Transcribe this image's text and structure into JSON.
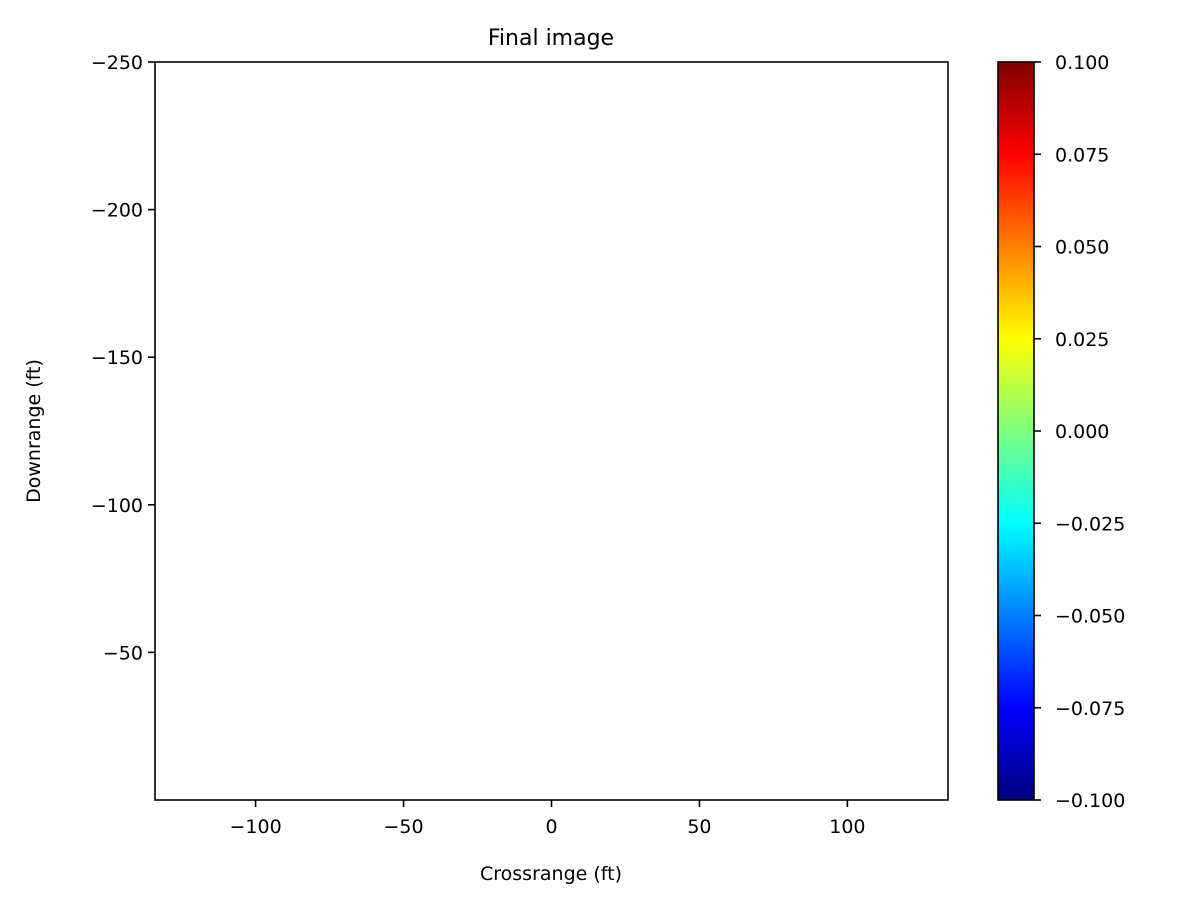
{
  "chart_data": {
    "type": "heatmap",
    "title": "Final image",
    "xlabel": "Crossrange (ft)",
    "ylabel": "Downrange (ft)",
    "xlim": [
      -134,
      134
    ],
    "ylim": [
      0,
      -250
    ],
    "x_ticks": [
      -100,
      -50,
      0,
      50,
      100
    ],
    "x_tick_labels": [
      "−100",
      "−50",
      "0",
      "50",
      "100"
    ],
    "y_ticks": [
      -250,
      -200,
      -150,
      -100,
      -50
    ],
    "y_tick_labels": [
      "−250",
      "−200",
      "−150",
      "−100",
      "−50"
    ],
    "values": [],
    "grid": false,
    "colorbar": {
      "colormap": "jet",
      "range": [
        -0.1,
        0.1
      ],
      "ticks": [
        -0.1,
        -0.075,
        -0.05,
        -0.025,
        0.0,
        0.025,
        0.05,
        0.075,
        0.1
      ],
      "tick_labels": [
        "−0.100",
        "−0.075",
        "−0.050",
        "−0.025",
        "0.000",
        "0.025",
        "0.050",
        "0.075",
        "0.100"
      ],
      "colors": [
        "#00007f",
        "#0000ff",
        "#007fff",
        "#00ffff",
        "#7fff7f",
        "#ffff00",
        "#ff7f00",
        "#ff0000",
        "#7f0000"
      ]
    }
  }
}
